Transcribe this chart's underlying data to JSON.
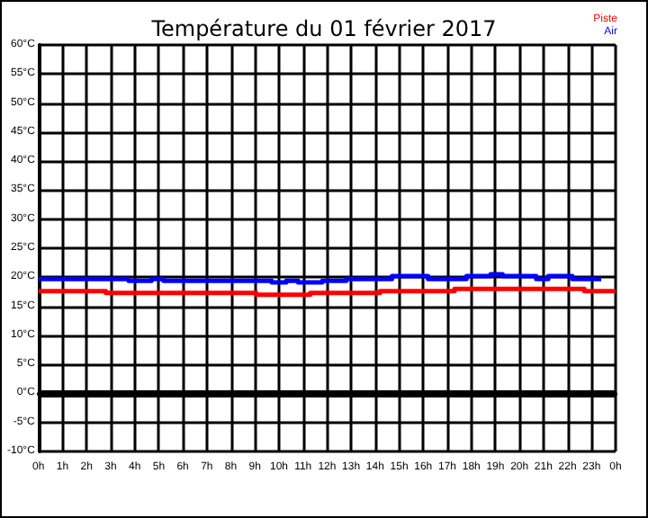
{
  "chart_data": {
    "type": "step",
    "title": "Température du 01 février 2017",
    "series": [
      {
        "name": "Piste",
        "color": "#ff0000",
        "x": [
          "2017-02-01T00:00",
          "2017-02-01T02:48",
          "2017-02-01T09:03",
          "2017-02-01T11:18",
          "2017-02-01T14:12",
          "2017-02-01T17:18",
          "2017-02-01T22:42",
          "2017-02-02T00:00"
        ],
        "values": [
          17.6,
          17.3,
          17.0,
          17.3,
          17.6,
          18.0,
          17.6,
          17.6
        ]
      },
      {
        "name": "Air",
        "color": "#0000ff",
        "x": [
          "2017-02-01T00:00",
          "2017-02-01T03:45",
          "2017-02-01T04:42",
          "2017-02-01T05:12",
          "2017-02-01T09:42",
          "2017-02-01T10:18",
          "2017-02-01T10:48",
          "2017-02-01T11:48",
          "2017-02-01T12:48",
          "2017-02-01T14:42",
          "2017-02-01T16:12",
          "2017-02-01T17:48",
          "2017-02-01T18:48",
          "2017-02-01T19:18",
          "2017-02-01T20:42",
          "2017-02-01T21:12",
          "2017-02-01T22:12",
          "2017-02-01T23:24"
        ],
        "values": [
          19.7,
          19.4,
          19.7,
          19.4,
          19.1,
          19.4,
          19.1,
          19.4,
          19.7,
          20.2,
          19.7,
          20.2,
          20.5,
          20.2,
          19.7,
          20.2,
          19.7,
          19.7
        ]
      }
    ],
    "xlim": [
      "2017-02-01T00:00",
      "2017-02-02T00:00"
    ],
    "xticks": [
      {
        "value": "2017-02-01T00:00",
        "label": "0h"
      },
      {
        "value": "2017-02-01T01:00",
        "label": "1h"
      },
      {
        "value": "2017-02-01T02:00",
        "label": "2h"
      },
      {
        "value": "2017-02-01T03:00",
        "label": "3h"
      },
      {
        "value": "2017-02-01T04:00",
        "label": "4h"
      },
      {
        "value": "2017-02-01T05:00",
        "label": "5h"
      },
      {
        "value": "2017-02-01T06:00",
        "label": "6h"
      },
      {
        "value": "2017-02-01T07:00",
        "label": "7h"
      },
      {
        "value": "2017-02-01T08:00",
        "label": "8h"
      },
      {
        "value": "2017-02-01T09:00",
        "label": "9h"
      },
      {
        "value": "2017-02-01T10:00",
        "label": "10h"
      },
      {
        "value": "2017-02-01T11:00",
        "label": "11h"
      },
      {
        "value": "2017-02-01T12:00",
        "label": "12h"
      },
      {
        "value": "2017-02-01T13:00",
        "label": "13h"
      },
      {
        "value": "2017-02-01T14:00",
        "label": "14h"
      },
      {
        "value": "2017-02-01T15:00",
        "label": "15h"
      },
      {
        "value": "2017-02-01T16:00",
        "label": "16h"
      },
      {
        "value": "2017-02-01T17:00",
        "label": "17h"
      },
      {
        "value": "2017-02-01T18:00",
        "label": "18h"
      },
      {
        "value": "2017-02-01T19:00",
        "label": "19h"
      },
      {
        "value": "2017-02-01T20:00",
        "label": "20h"
      },
      {
        "value": "2017-02-01T21:00",
        "label": "21h"
      },
      {
        "value": "2017-02-01T22:00",
        "label": "22h"
      },
      {
        "value": "2017-02-01T23:00",
        "label": "23h"
      },
      {
        "value": "2017-02-02T00:00",
        "label": "0h"
      }
    ],
    "ylim": [
      -10,
      60
    ],
    "yticks": [
      {
        "value": -10,
        "label": "-10°C"
      },
      {
        "value": -5,
        "label": "-5°C"
      },
      {
        "value": 0,
        "label": "0°C"
      },
      {
        "value": 5,
        "label": "5°C"
      },
      {
        "value": 10,
        "label": "10°C"
      },
      {
        "value": 15,
        "label": "15°C"
      },
      {
        "value": 20,
        "label": "20°C"
      },
      {
        "value": 25,
        "label": "25°C"
      },
      {
        "value": 30,
        "label": "30°C"
      },
      {
        "value": 35,
        "label": "35°C"
      },
      {
        "value": 40,
        "label": "40°C"
      },
      {
        "value": 45,
        "label": "45°C"
      },
      {
        "value": 50,
        "label": "50°C"
      },
      {
        "value": 55,
        "label": "55°C"
      },
      {
        "value": 60,
        "label": "60°C"
      }
    ],
    "ref_lines": [
      {
        "axis": "y",
        "value": 0,
        "color": "#000000"
      }
    ],
    "grid": true,
    "legend": "top right",
    "marker": "none",
    "line_style": "solid"
  }
}
